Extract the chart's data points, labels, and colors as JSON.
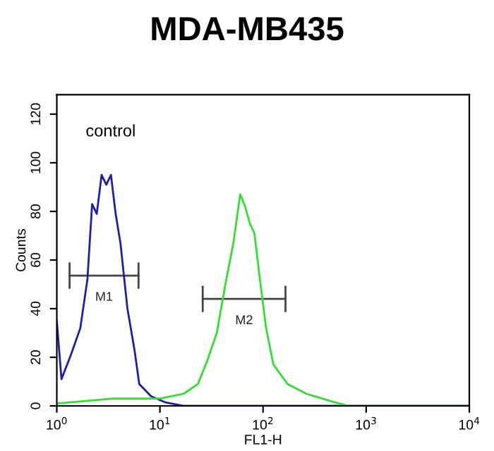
{
  "chart_data": {
    "type": "line",
    "title": "MDA-MB435",
    "xlabel": "FL1-H",
    "ylabel": "Counts",
    "log": "x",
    "grid": false,
    "legend": false,
    "marker": "none",
    "line_style": "solid",
    "xlim": [
      1,
      10000
    ],
    "xticks": [
      {
        "value": 1,
        "label": "10$^{0}$"
      },
      {
        "value": 10,
        "label": "10$^{1}$"
      },
      {
        "value": 100,
        "label": "10$^{2}$"
      },
      {
        "value": 1000,
        "label": "10$^{3}$"
      },
      {
        "value": 10000,
        "label": "10$^{4}$"
      }
    ],
    "ylim": [
      0,
      128
    ],
    "yticks": [
      0,
      20,
      40,
      60,
      80,
      100,
      120
    ],
    "annotations": [
      "control"
    ],
    "series": [
      {
        "name": "M1",
        "color": "#444444",
        "x": [
          1.33,
          6.2
        ],
        "values": [
          53.6,
          53.6
        ]
      },
      {
        "name": "M2",
        "color": "#444444",
        "x": [
          26,
          165
        ],
        "values": [
          44,
          44
        ]
      },
      {
        "color": "#1e1ea8",
        "x": [
          1.0,
          1.11,
          1.37,
          1.69,
          1.98,
          2.2,
          2.44,
          2.72,
          3.02,
          3.35,
          3.72,
          4.14,
          4.84,
          5.67,
          6.3,
          8.2,
          11.2,
          17,
          10000
        ],
        "values": [
          35,
          11,
          21,
          32,
          52,
          83,
          79,
          95,
          91,
          95,
          79,
          67,
          40,
          23,
          9,
          4,
          1.5,
          0,
          0
        ]
      },
      {
        "color": "#33dd33",
        "x": [
          1.0,
          3.5,
          10,
          17,
          23.4,
          29,
          35.6,
          44,
          51.6,
          60,
          67,
          74.5,
          82.5,
          92,
          107,
          126,
          173,
          263,
          494,
          680,
          10000
        ],
        "values": [
          1,
          3,
          3,
          5,
          9,
          19,
          30,
          52,
          67,
          87,
          82,
          75,
          71,
          54,
          32,
          17,
          9,
          5,
          1.5,
          0,
          0
        ]
      }
    ]
  }
}
